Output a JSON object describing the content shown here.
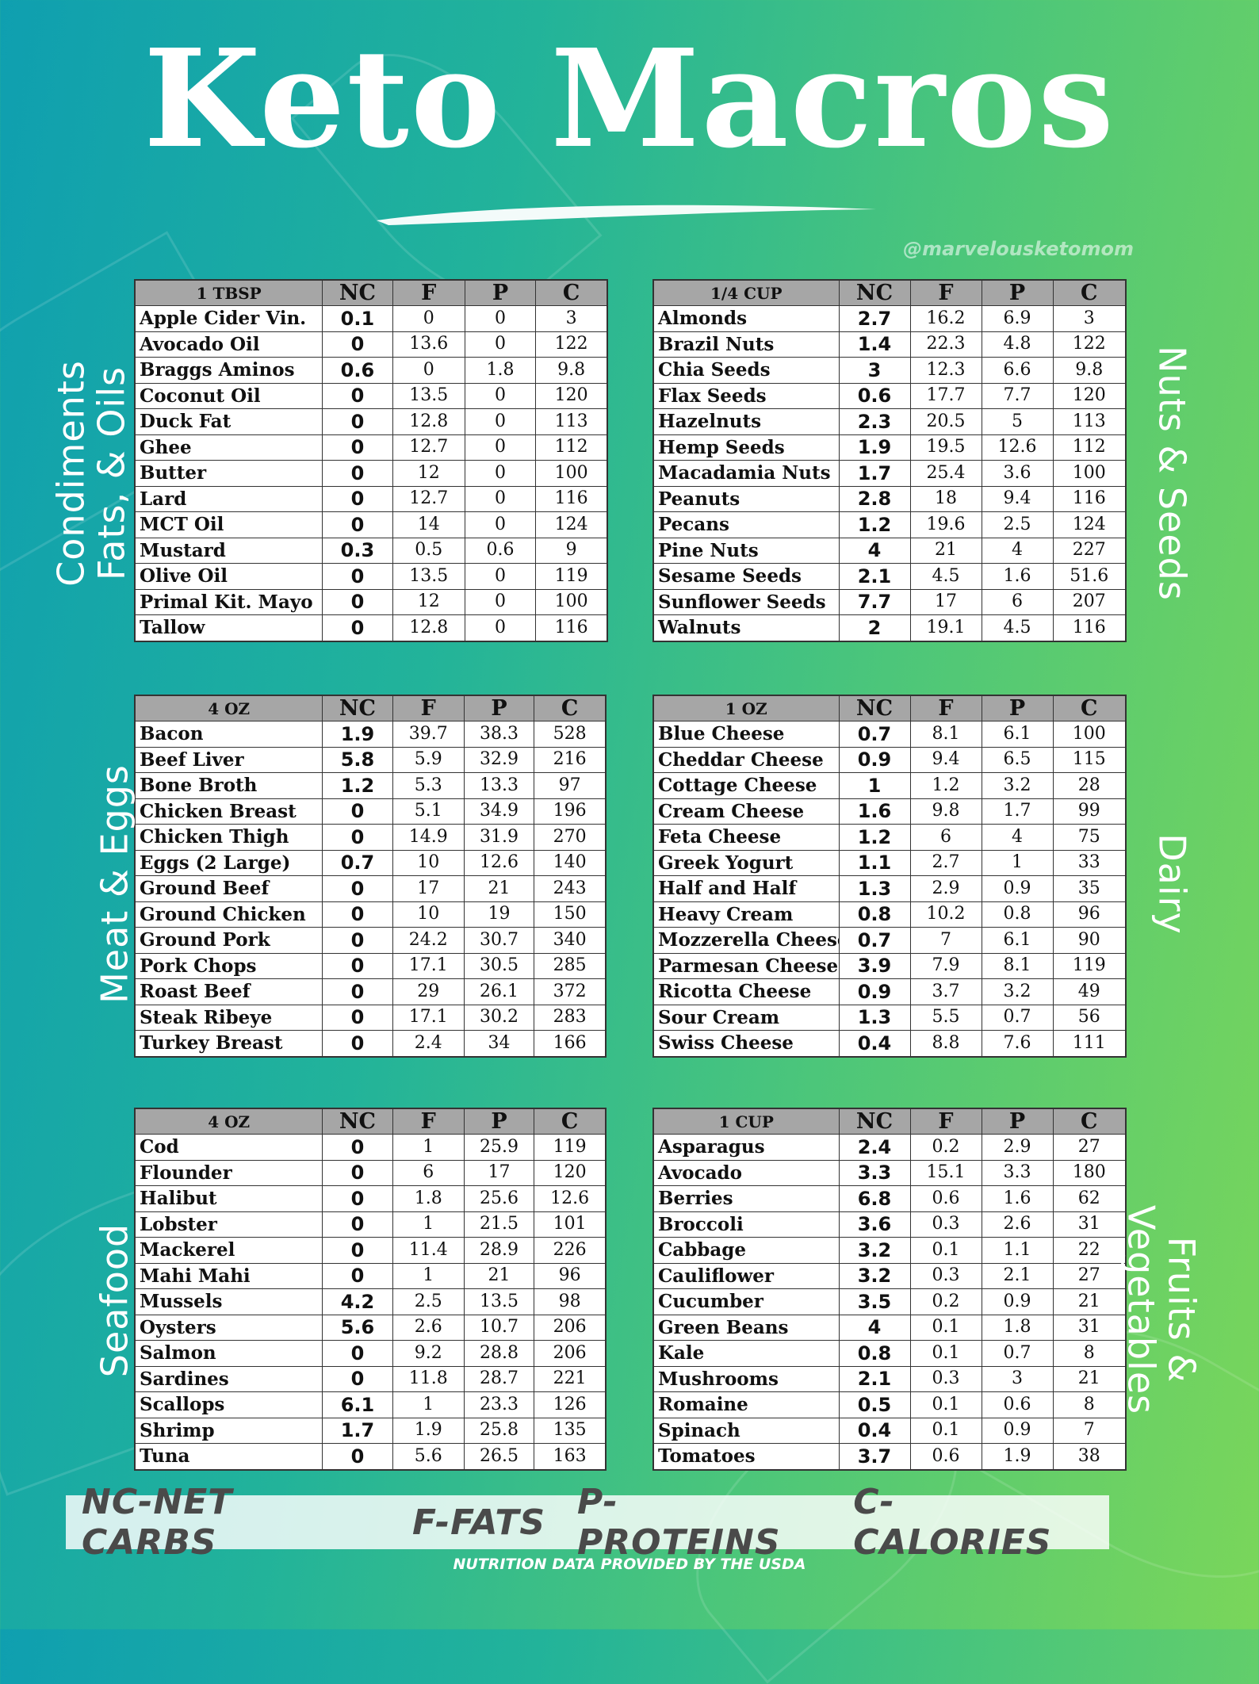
{
  "title": "Keto Macros",
  "watermark": "@marvelousketomom",
  "columns": [
    "NC",
    "F",
    "P",
    "C"
  ],
  "tables": [
    {
      "section": [
        "Condiments",
        "Fats, & Oils"
      ],
      "unit": "1 TBSP",
      "rows": [
        [
          "Apple Cider Vin.",
          "0.1",
          "0",
          "0",
          "3"
        ],
        [
          "Avocado Oil",
          "0",
          "13.6",
          "0",
          "122"
        ],
        [
          "Braggs Aminos",
          "0.6",
          "0",
          "1.8",
          "9.8"
        ],
        [
          "Coconut Oil",
          "0",
          "13.5",
          "0",
          "120"
        ],
        [
          "Duck Fat",
          "0",
          "12.8",
          "0",
          "113"
        ],
        [
          "Ghee",
          "0",
          "12.7",
          "0",
          "112"
        ],
        [
          "Butter",
          "0",
          "12",
          "0",
          "100"
        ],
        [
          "Lard",
          "0",
          "12.7",
          "0",
          "116"
        ],
        [
          "MCT Oil",
          "0",
          "14",
          "0",
          "124"
        ],
        [
          "Mustard",
          "0.3",
          "0.5",
          "0.6",
          "9"
        ],
        [
          "Olive Oil",
          "0",
          "13.5",
          "0",
          "119"
        ],
        [
          "Primal Kit. Mayo",
          "0",
          "12",
          "0",
          "100"
        ],
        [
          "Tallow",
          "0",
          "12.8",
          "0",
          "116"
        ]
      ]
    },
    {
      "section": [
        "Nuts & Seeds"
      ],
      "unit": "1/4  CUP",
      "rows": [
        [
          "Almonds",
          "2.7",
          "16.2",
          "6.9",
          "3"
        ],
        [
          "Brazil Nuts",
          "1.4",
          "22.3",
          "4.8",
          "122"
        ],
        [
          "Chia Seeds",
          "3",
          "12.3",
          "6.6",
          "9.8"
        ],
        [
          "Flax Seeds",
          "0.6",
          "17.7",
          "7.7",
          "120"
        ],
        [
          "Hazelnuts",
          "2.3",
          "20.5",
          "5",
          "113"
        ],
        [
          "Hemp Seeds",
          "1.9",
          "19.5",
          "12.6",
          "112"
        ],
        [
          "Macadamia Nuts",
          "1.7",
          "25.4",
          "3.6",
          "100"
        ],
        [
          "Peanuts",
          "2.8",
          "18",
          "9.4",
          "116"
        ],
        [
          "Pecans",
          "1.2",
          "19.6",
          "2.5",
          "124"
        ],
        [
          "Pine Nuts",
          "4",
          "21",
          "4",
          "227"
        ],
        [
          "Sesame Seeds",
          "2.1",
          "4.5",
          "1.6",
          "51.6"
        ],
        [
          "Sunflower Seeds",
          "7.7",
          "17",
          "6",
          "207"
        ],
        [
          "Walnuts",
          "2",
          "19.1",
          "4.5",
          "116"
        ]
      ]
    },
    {
      "section": [
        "Meat & Eggs"
      ],
      "unit": "4 OZ",
      "rows": [
        [
          "Bacon",
          "1.9",
          "39.7",
          "38.3",
          "528"
        ],
        [
          "Beef Liver",
          "5.8",
          "5.9",
          "32.9",
          "216"
        ],
        [
          "Bone Broth",
          "1.2",
          "5.3",
          "13.3",
          "97"
        ],
        [
          "Chicken Breast",
          "0",
          "5.1",
          "34.9",
          "196"
        ],
        [
          "Chicken Thigh",
          "0",
          "14.9",
          "31.9",
          "270"
        ],
        [
          "Eggs (2 Large)",
          "0.7",
          "10",
          "12.6",
          "140"
        ],
        [
          "Ground Beef",
          "0",
          "17",
          "21",
          "243"
        ],
        [
          "Ground Chicken",
          "0",
          "10",
          "19",
          "150"
        ],
        [
          "Ground Pork",
          "0",
          "24.2",
          "30.7",
          "340"
        ],
        [
          "Pork Chops",
          "0",
          "17.1",
          "30.5",
          "285"
        ],
        [
          "Roast Beef",
          "0",
          "29",
          "26.1",
          "372"
        ],
        [
          "Steak Ribeye",
          "0",
          "17.1",
          "30.2",
          "283"
        ],
        [
          "Turkey Breast",
          "0",
          "2.4",
          "34",
          "166"
        ]
      ]
    },
    {
      "section": [
        "Dairy"
      ],
      "unit": "1 OZ",
      "rows": [
        [
          "Blue Cheese",
          "0.7",
          "8.1",
          "6.1",
          "100"
        ],
        [
          "Cheddar  Cheese",
          "0.9",
          "9.4",
          "6.5",
          "115"
        ],
        [
          "Cottage Cheese",
          "1",
          "1.2",
          "3.2",
          "28"
        ],
        [
          "Cream Cheese",
          "1.6",
          "9.8",
          "1.7",
          "99"
        ],
        [
          "Feta Cheese",
          "1.2",
          "6",
          "4",
          "75"
        ],
        [
          "Greek Yogurt",
          "1.1",
          "2.7",
          "1",
          "33"
        ],
        [
          "Half and Half",
          "1.3",
          "2.9",
          "0.9",
          "35"
        ],
        [
          "Heavy Cream",
          "0.8",
          "10.2",
          "0.8",
          "96"
        ],
        [
          "Mozzerella Cheese",
          "0.7",
          "7",
          "6.1",
          "90"
        ],
        [
          "Parmesan Cheese",
          "3.9",
          "7.9",
          "8.1",
          "119"
        ],
        [
          "Ricotta Cheese",
          "0.9",
          "3.7",
          "3.2",
          "49"
        ],
        [
          "Sour Cream",
          "1.3",
          "5.5",
          "0.7",
          "56"
        ],
        [
          "Swiss Cheese",
          "0.4",
          "8.8",
          "7.6",
          "111"
        ]
      ]
    },
    {
      "section": [
        "Seafood"
      ],
      "unit": "4 OZ",
      "rows": [
        [
          "Cod",
          "0",
          "1",
          "25.9",
          "119"
        ],
        [
          "Flounder",
          "0",
          "6",
          "17",
          "120"
        ],
        [
          "Halibut",
          "0",
          "1.8",
          "25.6",
          "12.6"
        ],
        [
          "Lobster",
          "0",
          "1",
          "21.5",
          "101"
        ],
        [
          "Mackerel",
          "0",
          "11.4",
          "28.9",
          "226"
        ],
        [
          "Mahi Mahi",
          "0",
          "1",
          "21",
          "96"
        ],
        [
          "Mussels",
          "4.2",
          "2.5",
          "13.5",
          "98"
        ],
        [
          "Oysters",
          "5.6",
          "2.6",
          "10.7",
          "206"
        ],
        [
          "Salmon",
          "0",
          "9.2",
          "28.8",
          "206"
        ],
        [
          "Sardines",
          "0",
          "11.8",
          "28.7",
          "221"
        ],
        [
          "Scallops",
          "6.1",
          "1",
          "23.3",
          "126"
        ],
        [
          "Shrimp",
          "1.7",
          "1.9",
          "25.8",
          "135"
        ],
        [
          "Tuna",
          "0",
          "5.6",
          "26.5",
          "163"
        ]
      ]
    },
    {
      "section": [
        "Fruits &",
        "Vegetables"
      ],
      "unit": "1 CUP",
      "rows": [
        [
          "Asparagus",
          "2.4",
          "0.2",
          "2.9",
          "27"
        ],
        [
          "Avocado",
          "3.3",
          "15.1",
          "3.3",
          "180"
        ],
        [
          "Berries",
          "6.8",
          "0.6",
          "1.6",
          "62"
        ],
        [
          "Broccoli",
          "3.6",
          "0.3",
          "2.6",
          "31"
        ],
        [
          "Cabbage",
          "3.2",
          "0.1",
          "1.1",
          "22"
        ],
        [
          "Cauliflower",
          "3.2",
          "0.3",
          "2.1",
          "27"
        ],
        [
          "Cucumber",
          "3.5",
          "0.2",
          "0.9",
          "21"
        ],
        [
          "Green Beans",
          "4",
          "0.1",
          "1.8",
          "31"
        ],
        [
          "Kale",
          "0.8",
          "0.1",
          "0.7",
          "8"
        ],
        [
          "Mushrooms",
          "2.1",
          "0.3",
          "3",
          "21"
        ],
        [
          "Romaine",
          "0.5",
          "0.1",
          "0.6",
          "8"
        ],
        [
          "Spinach",
          "0.4",
          "0.1",
          "0.9",
          "7"
        ],
        [
          "Tomatoes",
          "3.7",
          "0.6",
          "1.9",
          "38"
        ]
      ]
    }
  ],
  "legend": [
    "NC-NET CARBS",
    "F-FATS",
    "P-PROTEINS",
    "C-CALORIES"
  ],
  "credit": "NUTRITION DATA PROVIDED BY THE USDA"
}
